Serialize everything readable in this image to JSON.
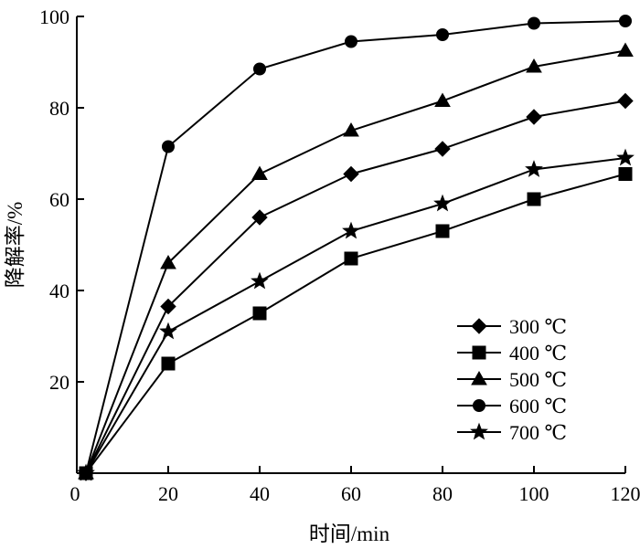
{
  "chart_data": {
    "type": "line",
    "xlabel": "时间/min",
    "ylabel": "降解率/%",
    "xlim": [
      0,
      120
    ],
    "ylim": [
      0,
      100
    ],
    "xticks": [
      "0",
      "20",
      "40",
      "60",
      "80",
      "100",
      "120"
    ],
    "yticks": [
      "20",
      "40",
      "60",
      "80",
      "100"
    ],
    "grid": false,
    "legend_position": "bottom-right",
    "x": [
      2,
      20,
      40,
      60,
      80,
      100,
      120
    ],
    "series": [
      {
        "name": "300 ℃",
        "marker": "diamond",
        "values": [
          0,
          36.5,
          56,
          65.5,
          71,
          78,
          81.5
        ]
      },
      {
        "name": "400 ℃",
        "marker": "square",
        "values": [
          0,
          24,
          35,
          47,
          53,
          60,
          65.5
        ]
      },
      {
        "name": "500 ℃",
        "marker": "triangle",
        "values": [
          0,
          46,
          65.5,
          75,
          81.5,
          89,
          92.5
        ]
      },
      {
        "name": "600 ℃",
        "marker": "circle",
        "values": [
          0,
          71.5,
          88.5,
          94.5,
          96,
          98.5,
          99
        ]
      },
      {
        "name": "700 ℃",
        "marker": "star",
        "values": [
          0,
          31,
          42,
          53,
          59,
          66.5,
          69
        ]
      }
    ]
  }
}
